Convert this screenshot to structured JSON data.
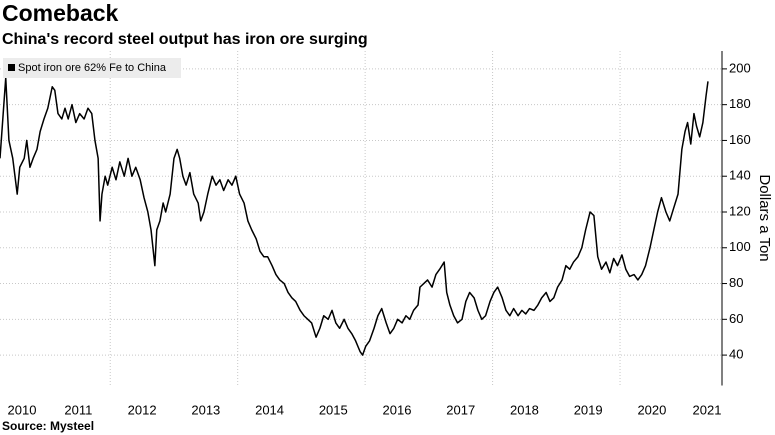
{
  "chart_data": {
    "type": "line",
    "title": "Comeback",
    "subtitle": "China's record steel output has iron ore surging",
    "source": "Source: Mysteel",
    "y_axis_label": "Dollars a Ton",
    "legend_position": "top-left",
    "grid": true,
    "xlim": [
      2010.27,
      2021.6
    ],
    "xticks": [
      2010,
      2011,
      2012,
      2013,
      2014,
      2015,
      2016,
      2017,
      2018,
      2019,
      2020,
      2021
    ],
    "ylim": [
      23,
      210
    ],
    "yticks": [
      40,
      60,
      80,
      100,
      120,
      140,
      160,
      180,
      200
    ],
    "x": [
      2010.27,
      2010.32,
      2010.36,
      2010.41,
      2010.47,
      2010.54,
      2010.58,
      2010.65,
      2010.69,
      2010.74,
      2010.79,
      2010.85,
      2010.9,
      2010.96,
      2011.02,
      2011.09,
      2011.13,
      2011.18,
      2011.24,
      2011.29,
      2011.34,
      2011.4,
      2011.46,
      2011.52,
      2011.59,
      2011.65,
      2011.71,
      2011.76,
      2011.81,
      2011.84,
      2011.87,
      2011.92,
      2011.96,
      2012.03,
      2012.09,
      2012.15,
      2012.22,
      2012.28,
      2012.34,
      2012.4,
      2012.47,
      2012.53,
      2012.59,
      2012.64,
      2012.67,
      2012.7,
      2012.73,
      2012.78,
      2012.83,
      2012.87,
      2012.94,
      2013.0,
      2013.05,
      2013.09,
      2013.14,
      2013.19,
      2013.25,
      2013.31,
      2013.38,
      2013.42,
      2013.47,
      2013.53,
      2013.6,
      2013.66,
      2013.72,
      2013.78,
      2013.85,
      2013.91,
      2013.97,
      2014.03,
      2014.1,
      2014.16,
      2014.22,
      2014.29,
      2014.35,
      2014.41,
      2014.47,
      2014.54,
      2014.6,
      2014.66,
      2014.73,
      2014.79,
      2014.85,
      2014.91,
      2014.98,
      2015.04,
      2015.1,
      2015.16,
      2015.23,
      2015.29,
      2015.35,
      2015.42,
      2015.48,
      2015.54,
      2015.6,
      2015.67,
      2015.73,
      2015.79,
      2015.85,
      2015.92,
      2015.96,
      2016.01,
      2016.07,
      2016.14,
      2016.2,
      2016.26,
      2016.33,
      2016.39,
      2016.45,
      2016.51,
      2016.58,
      2016.64,
      2016.7,
      2016.76,
      2016.83,
      2016.86,
      2016.92,
      2016.98,
      2017.05,
      2017.11,
      2017.17,
      2017.24,
      2017.28,
      2017.33,
      2017.39,
      2017.45,
      2017.52,
      2017.58,
      2017.64,
      2017.71,
      2017.77,
      2017.83,
      2017.89,
      2017.96,
      2018.02,
      2018.08,
      2018.15,
      2018.21,
      2018.27,
      2018.33,
      2018.4,
      2018.46,
      2018.52,
      2018.58,
      2018.65,
      2018.71,
      2018.77,
      2018.84,
      2018.9,
      2018.96,
      2019.02,
      2019.09,
      2019.15,
      2019.21,
      2019.27,
      2019.34,
      2019.4,
      2019.46,
      2019.53,
      2019.59,
      2019.65,
      2019.71,
      2019.78,
      2019.84,
      2019.9,
      2019.96,
      2020.03,
      2020.09,
      2020.15,
      2020.22,
      2020.28,
      2020.34,
      2020.4,
      2020.47,
      2020.53,
      2020.59,
      2020.65,
      2020.72,
      2020.78,
      2020.84,
      2020.91,
      2020.97,
      2021.02,
      2021.06,
      2021.11,
      2021.16,
      2021.2,
      2021.25,
      2021.3,
      2021.35,
      2021.38
    ],
    "series": [
      {
        "name": "Spot iron ore 62% Fe to China",
        "color": "#000000",
        "values": [
          150,
          175,
          195,
          160,
          150,
          130,
          145,
          150,
          160,
          145,
          150,
          155,
          165,
          172,
          178,
          190,
          188,
          175,
          172,
          178,
          172,
          180,
          170,
          175,
          172,
          178,
          175,
          160,
          150,
          115,
          130,
          140,
          135,
          145,
          138,
          148,
          140,
          150,
          140,
          145,
          138,
          128,
          120,
          110,
          100,
          90,
          110,
          115,
          125,
          120,
          130,
          150,
          155,
          150,
          140,
          135,
          142,
          130,
          125,
          115,
          120,
          130,
          140,
          135,
          138,
          132,
          138,
          135,
          140,
          130,
          125,
          115,
          110,
          105,
          98,
          95,
          95,
          90,
          85,
          82,
          80,
          75,
          72,
          70,
          65,
          62,
          60,
          58,
          50,
          55,
          62,
          60,
          65,
          58,
          55,
          60,
          55,
          52,
          48,
          42,
          40,
          45,
          48,
          55,
          62,
          66,
          58,
          52,
          55,
          60,
          58,
          62,
          60,
          65,
          68,
          78,
          80,
          82,
          78,
          85,
          88,
          92,
          75,
          68,
          62,
          58,
          60,
          70,
          75,
          72,
          65,
          60,
          62,
          70,
          75,
          78,
          72,
          65,
          62,
          66,
          62,
          65,
          63,
          66,
          65,
          68,
          72,
          75,
          70,
          72,
          78,
          82,
          90,
          88,
          92,
          95,
          100,
          110,
          120,
          118,
          95,
          88,
          92,
          86,
          94,
          90,
          96,
          88,
          84,
          85,
          82,
          85,
          90,
          100,
          110,
          120,
          128,
          120,
          115,
          122,
          130,
          155,
          165,
          170,
          158,
          175,
          168,
          162,
          170,
          185,
          193
        ]
      }
    ]
  }
}
